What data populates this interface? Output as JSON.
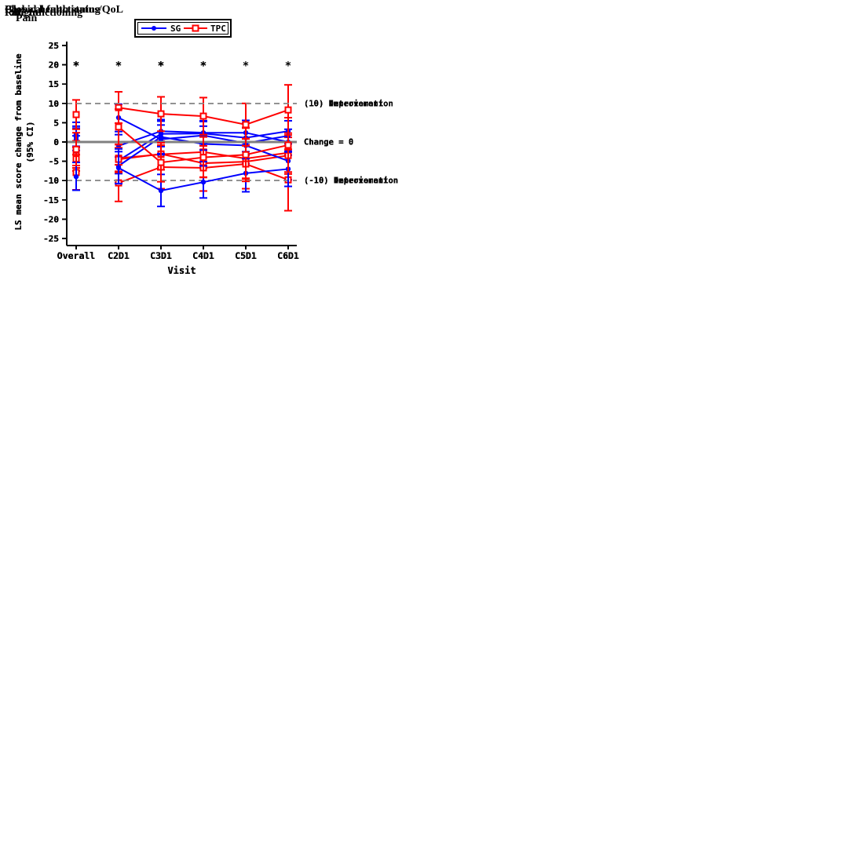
{
  "chart_data": [
    {
      "type": "line",
      "title": "Global health status/QoL",
      "xlabel": "Visit",
      "ylabel": "LS mean score change from baseline",
      "ylabel_line2": "(95% CI)",
      "ylim": [
        -25,
        25
      ],
      "ytick_step": 5,
      "grid": false,
      "legend_position": "top-center",
      "categories": [
        "Overall",
        "C2D1",
        "C3D1",
        "C4D1",
        "C5D1",
        "C6D1"
      ],
      "line_connects_from_category": "C2D1",
      "significance_marker": "*",
      "significance_y": 20,
      "significant_visits": [
        "Overall",
        "C3D1",
        "C4D1",
        "C6D1"
      ],
      "series": [
        {
          "name": "SG",
          "color": "#0000ff",
          "marker": "filled-circle",
          "mean": [
            0.6,
            -4.8,
            2.1,
            2.2,
            1.1,
            2.8
          ],
          "ci_low": [
            -2.2,
            -8.2,
            -1.2,
            -1.0,
            -2.5,
            -0.5
          ],
          "ci_high": [
            3.6,
            -1.6,
            5.4,
            5.5,
            4.9,
            6.3
          ]
        },
        {
          "name": "TPC",
          "color": "#ff0000",
          "marker": "open-square",
          "mean": [
            -3.5,
            -4.2,
            -3.2,
            -2.6,
            -4.3,
            -2.8
          ],
          "ci_low": [
            -6.7,
            -7.9,
            -7.2,
            -6.8,
            -9.6,
            -7.8
          ],
          "ci_high": [
            0.3,
            -0.6,
            0.8,
            1.6,
            0.9,
            2.3
          ]
        }
      ],
      "reference_lines": [
        {
          "y": 10,
          "style": "dashed",
          "label": "(10) Improvement"
        },
        {
          "y": 0,
          "style": "solid",
          "label": "Change = 0"
        },
        {
          "y": -10,
          "style": "dashed",
          "label": "(-10) Deterioration"
        }
      ]
    },
    {
      "type": "line",
      "title": "Physical functioning",
      "xlabel": "Visit",
      "ylabel": "LS mean score change from baseline",
      "ylabel_line2": "(95% CI)",
      "ylim": [
        -25,
        25
      ],
      "ytick_step": 5,
      "grid": false,
      "legend_position": "top-center",
      "categories": [
        "Overall",
        "C2D1",
        "C3D1",
        "C4D1",
        "C5D1",
        "C6D1"
      ],
      "line_connects_from_category": "C2D1",
      "significance_marker": "*",
      "significance_y": 20,
      "significant_visits": [
        "Overall",
        "C2D1",
        "C3D1",
        "C4D1",
        "C5D1"
      ],
      "series": [
        {
          "name": "SG",
          "color": "#0000ff",
          "marker": "filled-circle",
          "mean": [
            1.3,
            -1.0,
            2.8,
            2.4,
            2.4,
            0.0
          ],
          "ci_low": [
            -1.4,
            -3.9,
            -0.1,
            -0.5,
            -0.7,
            -3.4
          ],
          "ci_high": [
            4.1,
            1.9,
            5.6,
            5.3,
            5.6,
            3.3
          ]
        },
        {
          "name": "TPC",
          "color": "#ff0000",
          "marker": "open-square",
          "mean": [
            -4.4,
            -4.5,
            -3.1,
            -5.5,
            -5.1,
            -3.5
          ],
          "ci_low": [
            -7.5,
            -7.6,
            -6.5,
            -9.1,
            -9.4,
            -8.3
          ],
          "ci_high": [
            -1.4,
            -1.5,
            0.2,
            -2.0,
            -0.8,
            1.2
          ]
        }
      ],
      "reference_lines": [
        {
          "y": 10,
          "style": "dashed",
          "label": "(10) Improvement"
        },
        {
          "y": 0,
          "style": "solid",
          "label": "Change = 0"
        },
        {
          "y": -10,
          "style": "dashed",
          "label": "(-10) Deterioration"
        }
      ]
    },
    {
      "type": "line",
      "title": "Role functioning",
      "xlabel": "Visit",
      "ylabel": "LS mean score change from baseline",
      "ylabel_line2": "(95% CI)",
      "ylim": [
        -25,
        25
      ],
      "ytick_step": 5,
      "grid": false,
      "legend_position": "top-center",
      "categories": [
        "Overall",
        "C2D1",
        "C3D1",
        "C4D1",
        "C5D1",
        "C6D1"
      ],
      "line_connects_from_category": "C2D1",
      "significance_marker": "*",
      "significance_y": 20,
      "significant_visits": [
        "Overall",
        "C3D1"
      ],
      "series": [
        {
          "name": "SG",
          "color": "#0000ff",
          "marker": "filled-circle",
          "mean": [
            -2.3,
            -6.2,
            1.3,
            -0.5,
            -0.9,
            -4.9
          ],
          "ci_low": [
            -6.1,
            -10.6,
            -3.3,
            -5.1,
            -5.6,
            -9.8
          ],
          "ci_high": [
            1.6,
            -1.8,
            5.8,
            4.1,
            3.7,
            0.1
          ]
        },
        {
          "name": "TPC",
          "color": "#ff0000",
          "marker": "open-square",
          "mean": [
            -7.9,
            -10.6,
            -6.5,
            -6.7,
            -5.7,
            -9.8
          ],
          "ci_low": [
            -12.4,
            -15.4,
            -12.1,
            -12.7,
            -12.1,
            -17.8
          ],
          "ci_high": [
            -3.3,
            -5.9,
            -0.8,
            -1.0,
            0.8,
            -1.9
          ]
        }
      ],
      "reference_lines": [
        {
          "y": 10,
          "style": "dashed",
          "label": "(10) Improvement"
        },
        {
          "y": 0,
          "style": "solid",
          "label": "Change = 0"
        },
        {
          "y": -10,
          "style": "dashed",
          "label": "(-10) Deterioration"
        }
      ]
    },
    {
      "type": "line",
      "title": "Fatigue",
      "xlabel": "Visit",
      "ylabel": "LS mean score change from baseline",
      "ylabel_line2": "(95% CI)",
      "ylim": [
        -25,
        25
      ],
      "ytick_step": 5,
      "grid": false,
      "legend_position": "top-center",
      "categories": [
        "Overall",
        "C2D1",
        "C3D1",
        "C4D1",
        "C5D1",
        "C6D1"
      ],
      "line_connects_from_category": "C2D1",
      "significance_marker": "*",
      "significance_y": 20,
      "significant_visits": [
        "Overall",
        "C3D1"
      ],
      "series": [
        {
          "name": "SG",
          "color": "#0000ff",
          "marker": "filled-circle",
          "mean": [
            2.0,
            6.3,
            0.7,
            1.7,
            -0.3,
            1.6
          ],
          "ci_low": [
            -1.1,
            2.7,
            -3.0,
            -2.1,
            -4.3,
            -2.6
          ],
          "ci_high": [
            5.1,
            9.8,
            4.4,
            5.4,
            3.7,
            5.5
          ]
        },
        {
          "name": "TPC",
          "color": "#ff0000",
          "marker": "open-square",
          "mean": [
            7.1,
            8.9,
            7.3,
            6.7,
            4.5,
            8.3
          ],
          "ci_low": [
            3.3,
            4.9,
            2.8,
            1.9,
            -1.0,
            1.8
          ],
          "ci_high": [
            10.9,
            13.0,
            11.7,
            11.5,
            10.0,
            14.8
          ]
        }
      ],
      "reference_lines": [
        {
          "y": 10,
          "style": "dashed",
          "label": "(10) Deterioration"
        },
        {
          "y": 0,
          "style": "solid",
          "label": "Change = 0"
        },
        {
          "y": -10,
          "style": "dashed",
          "label": "(-10) Improvement"
        }
      ]
    },
    {
      "type": "line",
      "title": "Pain",
      "xlabel": "Visit",
      "ylabel": "LS mean score change from baseline",
      "ylabel_line2": "(95% CI)",
      "ylim": [
        -25,
        25
      ],
      "ytick_step": 5,
      "grid": false,
      "legend_position": "top-center",
      "categories": [
        "Overall",
        "C2D1",
        "C3D1",
        "C4D1",
        "C5D1",
        "C6D1"
      ],
      "line_connects_from_category": "C2D1",
      "significance_marker": "*",
      "significance_y": 20,
      "significant_visits": [
        "Overall",
        "C2D1",
        "C3D1",
        "C4D1"
      ],
      "series": [
        {
          "name": "SG",
          "color": "#0000ff",
          "marker": "filled-circle",
          "mean": [
            -9.0,
            -6.7,
            -12.6,
            -10.4,
            -8.1,
            -7.0
          ],
          "ci_low": [
            -12.5,
            -10.8,
            -16.7,
            -14.5,
            -12.9,
            -11.5
          ],
          "ci_high": [
            -5.3,
            -2.5,
            -8.4,
            -6.2,
            -3.4,
            -2.4
          ]
        },
        {
          "name": "TPC",
          "color": "#ff0000",
          "marker": "open-square",
          "mean": [
            -1.9,
            3.9,
            -5.3,
            -4.0,
            -3.3,
            -0.8
          ],
          "ci_low": [
            -6.1,
            -0.7,
            -10.3,
            -9.2,
            -10.2,
            -7.8
          ],
          "ci_high": [
            2.4,
            8.5,
            -0.2,
            1.3,
            3.6,
            6.3
          ]
        }
      ],
      "reference_lines": [
        {
          "y": 10,
          "style": "dashed",
          "label": "(10) Deterioration"
        },
        {
          "y": 0,
          "style": "solid",
          "label": "Change = 0"
        },
        {
          "y": -10,
          "style": "dashed",
          "label": "(-10) Improvement"
        }
      ]
    }
  ],
  "style": {
    "zero_line_color": "#808080",
    "dashed_line_color": "#8c8c8c",
    "axis_color": "#000000",
    "background": "#ffffff"
  }
}
